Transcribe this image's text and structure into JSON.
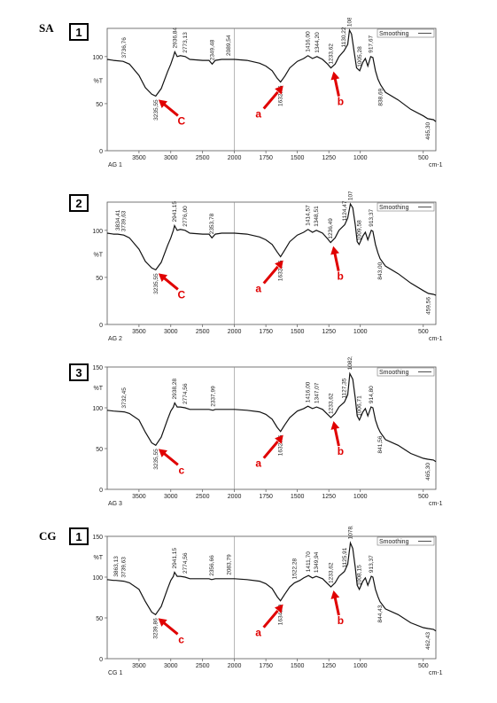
{
  "group_labels": [
    "SA",
    "CG"
  ],
  "chart_data": [
    {
      "type": "line",
      "panel_number": "1",
      "sample_label": "AG 1",
      "legend": "Smoothing",
      "xunit": "cm-1",
      "xlim": [
        4000,
        400
      ],
      "ylim": [
        0,
        130
      ],
      "xticks": [
        "3500",
        "3000",
        "2500",
        "2000",
        "1750",
        "1500",
        "1250",
        "1000",
        "500"
      ],
      "yticks": [
        "100",
        "%T",
        "50",
        "0"
      ],
      "series": [
        {
          "x": [
            4000,
            3900,
            3750,
            3650,
            3500,
            3400,
            3300,
            3236,
            3150,
            3050,
            3000,
            2960,
            2937,
            2900,
            2850,
            2773,
            2700,
            2500,
            2400,
            2349,
            2300,
            2200,
            2090,
            2000,
            1900,
            1800,
            1750,
            1700,
            1660,
            1633,
            1600,
            1560,
            1500,
            1450,
            1416,
            1380,
            1344,
            1300,
            1260,
            1234,
            1200,
            1170,
            1130,
            1100,
            1086,
            1070,
            1050,
            1030,
            1005,
            980,
            960,
            940,
            918,
            900,
            880,
            860,
            839,
            800,
            700,
            600,
            500,
            465,
            420,
            400
          ],
          "y": [
            97,
            96,
            95,
            92,
            80,
            67,
            60,
            58,
            66,
            84,
            92,
            100,
            105,
            100,
            101,
            100,
            97,
            96,
            96,
            92,
            96,
            97,
            97,
            97,
            96,
            93,
            90,
            85,
            77,
            73,
            79,
            88,
            95,
            98,
            101,
            98,
            100,
            97,
            92,
            88,
            92,
            100,
            106,
            113,
            128,
            124,
            106,
            88,
            85,
            94,
            98,
            90,
            100,
            99,
            85,
            76,
            70,
            62,
            54,
            44,
            37,
            34,
            33,
            31
          ]
        }
      ],
      "annotations": [
        {
          "text": "3736,76",
          "x": 3736
        },
        {
          "text": "3235,55",
          "x": 3236
        },
        {
          "text": "2936,84",
          "x": 2937
        },
        {
          "text": "2773,13",
          "x": 2773
        },
        {
          "text": "2349,48",
          "x": 2349
        },
        {
          "text": "2089,54",
          "x": 2090
        },
        {
          "text": "1632,86",
          "x": 1633
        },
        {
          "text": "1416,00",
          "x": 1416
        },
        {
          "text": "1344,20",
          "x": 1344
        },
        {
          "text": "1233,62",
          "x": 1234
        },
        {
          "text": "1130,22",
          "x": 1130
        },
        {
          "text": "1085,70",
          "x": 1086
        },
        {
          "text": "1005,28",
          "x": 1005
        },
        {
          "text": "917,67",
          "x": 918
        },
        {
          "text": "838,69",
          "x": 839
        },
        {
          "text": "465,30",
          "x": 465
        }
      ],
      "arrows": [
        {
          "letter": "C",
          "x": 3236
        },
        {
          "letter": "a",
          "x": 1633
        },
        {
          "letter": "b",
          "x": 1234
        }
      ]
    },
    {
      "type": "line",
      "panel_number": "2",
      "sample_label": "AG 2",
      "legend": "Smoothing",
      "xunit": "cm-1",
      "xlim": [
        4000,
        400
      ],
      "ylim": [
        0,
        130
      ],
      "xticks": [
        "3500",
        "3000",
        "2500",
        "2000",
        "1750",
        "1500",
        "1250",
        "1000",
        "500"
      ],
      "yticks": [
        "100",
        "%T",
        "50",
        "0"
      ],
      "series": [
        {
          "x": [
            4000,
            3900,
            3834,
            3740,
            3650,
            3500,
            3400,
            3300,
            3236,
            3150,
            3050,
            3000,
            2960,
            2941,
            2900,
            2850,
            2776,
            2700,
            2500,
            2400,
            2354,
            2300,
            2200,
            2000,
            1900,
            1800,
            1750,
            1700,
            1660,
            1633,
            1600,
            1560,
            1500,
            1450,
            1415,
            1380,
            1349,
            1300,
            1260,
            1236,
            1200,
            1170,
            1124,
            1100,
            1079,
            1060,
            1040,
            1025,
            1009,
            980,
            960,
            940,
            913,
            900,
            880,
            860,
            843,
            800,
            700,
            600,
            500,
            460,
            420,
            400
          ],
          "y": [
            97,
            96,
            96,
            95,
            92,
            80,
            67,
            60,
            58,
            66,
            84,
            92,
            100,
            105,
            100,
            101,
            100,
            97,
            96,
            96,
            92,
            96,
            97,
            97,
            96,
            93,
            90,
            85,
            77,
            72,
            79,
            88,
            95,
            98,
            101,
            98,
            100,
            97,
            91,
            87,
            92,
            100,
            106,
            113,
            128,
            124,
            106,
            88,
            85,
            94,
            98,
            90,
            100,
            99,
            85,
            76,
            70,
            62,
            54,
            44,
            36,
            33,
            32,
            31
          ]
        }
      ],
      "annotations": [
        {
          "text": "3834,41",
          "x": 3834
        },
        {
          "text": "3739,63",
          "x": 3740
        },
        {
          "text": "3235,55",
          "x": 3236
        },
        {
          "text": "2941,15",
          "x": 2941
        },
        {
          "text": "2776,00",
          "x": 2776
        },
        {
          "text": "2353,78",
          "x": 2354
        },
        {
          "text": "1632,86",
          "x": 1633
        },
        {
          "text": "1414,57",
          "x": 1415
        },
        {
          "text": "1348,51",
          "x": 1349
        },
        {
          "text": "1236,49",
          "x": 1236
        },
        {
          "text": "1124,47",
          "x": 1124
        },
        {
          "text": "1078,52",
          "x": 1079
        },
        {
          "text": "1009,58",
          "x": 1009
        },
        {
          "text": "913,37",
          "x": 913
        },
        {
          "text": "843,00",
          "x": 843
        },
        {
          "text": "459,56",
          "x": 460
        }
      ],
      "arrows": [
        {
          "letter": "C",
          "x": 3236
        },
        {
          "letter": "a",
          "x": 1633
        },
        {
          "letter": "b",
          "x": 1236
        }
      ]
    },
    {
      "type": "line",
      "panel_number": "3",
      "sample_label": "AG 3",
      "legend": "Smoothing",
      "xunit": "cm-1",
      "xlim": [
        4000,
        400
      ],
      "ylim": [
        0,
        150
      ],
      "xticks": [
        "3500",
        "3000",
        "2500",
        "2000",
        "1750",
        "1500",
        "1250",
        "1000",
        "500"
      ],
      "yticks": [
        "150",
        "%T",
        "100",
        "50",
        "0"
      ],
      "series": [
        {
          "x": [
            4000,
            3900,
            3732,
            3650,
            3500,
            3400,
            3300,
            3236,
            3150,
            3050,
            3000,
            2960,
            2938,
            2900,
            2850,
            2775,
            2700,
            2500,
            2400,
            2338,
            2300,
            2200,
            2000,
            1900,
            1800,
            1750,
            1700,
            1660,
            1633,
            1600,
            1560,
            1500,
            1450,
            1416,
            1380,
            1347,
            1300,
            1260,
            1234,
            1200,
            1170,
            1127,
            1100,
            1083,
            1060,
            1040,
            1025,
            1007,
            980,
            960,
            940,
            915,
            900,
            880,
            860,
            842,
            800,
            700,
            600,
            500,
            465,
            420,
            400
          ],
          "y": [
            97,
            96,
            95,
            93,
            85,
            70,
            57,
            54,
            64,
            86,
            96,
            101,
            106,
            101,
            101,
            100,
            98,
            98,
            98,
            97,
            98,
            98,
            98,
            97,
            95,
            92,
            86,
            76,
            71,
            79,
            88,
            96,
            99,
            102,
            99,
            101,
            98,
            92,
            88,
            93,
            101,
            107,
            116,
            142,
            135,
            112,
            90,
            85,
            95,
            99,
            90,
            101,
            100,
            85,
            76,
            70,
            61,
            54,
            44,
            38,
            37,
            36,
            34
          ]
        }
      ],
      "annotations": [
        {
          "text": "3732,45",
          "x": 3732
        },
        {
          "text": "3235,55",
          "x": 3236
        },
        {
          "text": "2938,28",
          "x": 2938
        },
        {
          "text": "2774,56",
          "x": 2775
        },
        {
          "text": "2337,99",
          "x": 2338
        },
        {
          "text": "1632,86",
          "x": 1633
        },
        {
          "text": "1416,00",
          "x": 1416
        },
        {
          "text": "1347,07",
          "x": 1347
        },
        {
          "text": "1233,62",
          "x": 1234
        },
        {
          "text": "1127,35",
          "x": 1127
        },
        {
          "text": "1082,83",
          "x": 1083
        },
        {
          "text": "1006,71",
          "x": 1007
        },
        {
          "text": "914,80",
          "x": 915
        },
        {
          "text": "841,56",
          "x": 842
        },
        {
          "text": "465,30",
          "x": 465
        }
      ],
      "arrows": [
        {
          "letter": "c",
          "x": 3236
        },
        {
          "letter": "a",
          "x": 1633
        },
        {
          "letter": "b",
          "x": 1234
        }
      ]
    },
    {
      "type": "line",
      "panel_number": "1",
      "sample_label": "CG 1",
      "legend": "Smoothing",
      "xunit": "cm-1",
      "xlim": [
        4000,
        400
      ],
      "ylim": [
        0,
        150
      ],
      "xticks": [
        "3500",
        "3000",
        "2500",
        "2000",
        "1750",
        "1500",
        "1250",
        "1000",
        "500"
      ],
      "yticks": [
        "150",
        "%T",
        "100",
        "50",
        "0"
      ],
      "series": [
        {
          "x": [
            4000,
            3900,
            3863,
            3740,
            3650,
            3500,
            3400,
            3300,
            3240,
            3150,
            3050,
            3000,
            2960,
            2941,
            2900,
            2850,
            2775,
            2700,
            2500,
            2400,
            2357,
            2300,
            2200,
            2084,
            2000,
            1900,
            1800,
            1750,
            1700,
            1660,
            1634,
            1600,
            1560,
            1522,
            1480,
            1450,
            1412,
            1380,
            1350,
            1300,
            1260,
            1234,
            1200,
            1170,
            1126,
            1100,
            1079,
            1060,
            1040,
            1025,
            1008,
            980,
            960,
            940,
            913,
            900,
            880,
            860,
            844,
            800,
            700,
            600,
            500,
            462,
            420,
            400
          ],
          "y": [
            97,
            96,
            96,
            95,
            93,
            85,
            70,
            57,
            54,
            64,
            86,
            96,
            101,
            106,
            101,
            101,
            100,
            98,
            98,
            98,
            97,
            98,
            98,
            98,
            98,
            97,
            95,
            92,
            86,
            76,
            71,
            79,
            88,
            93,
            96,
            99,
            102,
            99,
            101,
            98,
            92,
            88,
            93,
            101,
            107,
            116,
            142,
            135,
            112,
            90,
            85,
            95,
            99,
            90,
            101,
            100,
            85,
            76,
            70,
            61,
            54,
            44,
            38,
            37,
            36,
            34
          ]
        }
      ],
      "annotations": [
        {
          "text": "3863,13",
          "x": 3863
        },
        {
          "text": "3739,63",
          "x": 3740
        },
        {
          "text": "3239,86",
          "x": 3240
        },
        {
          "text": "2941,15",
          "x": 2941
        },
        {
          "text": "2774,56",
          "x": 2775
        },
        {
          "text": "2356,66",
          "x": 2357
        },
        {
          "text": "2083,79",
          "x": 2084
        },
        {
          "text": "1634,29",
          "x": 1634
        },
        {
          "text": "1522,28",
          "x": 1522
        },
        {
          "text": "1411,70",
          "x": 1412
        },
        {
          "text": "1349,94",
          "x": 1350
        },
        {
          "text": "1233,62",
          "x": 1234
        },
        {
          "text": "1125,91",
          "x": 1126
        },
        {
          "text": "1078,52",
          "x": 1079
        },
        {
          "text": "1008,15",
          "x": 1008
        },
        {
          "text": "913,37",
          "x": 913
        },
        {
          "text": "844,43",
          "x": 844
        },
        {
          "text": "462,43",
          "x": 462
        }
      ],
      "arrows": [
        {
          "letter": "c",
          "x": 3240
        },
        {
          "letter": "a",
          "x": 1634
        },
        {
          "letter": "b",
          "x": 1234
        }
      ]
    }
  ]
}
